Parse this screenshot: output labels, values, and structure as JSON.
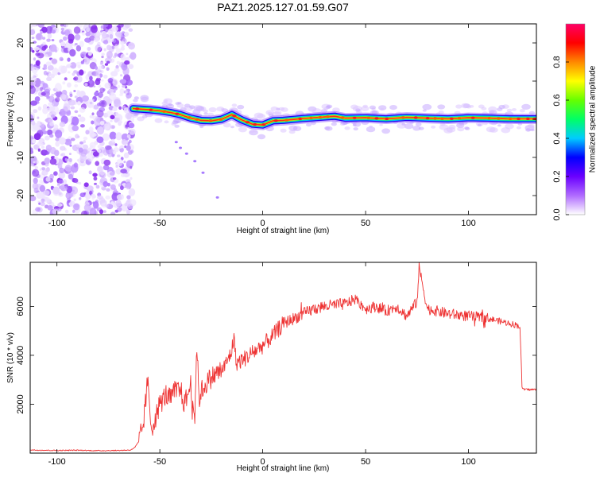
{
  "title": "PAZ1.2025.127.01.59.G07",
  "chart_data": [
    {
      "type": "heatmap",
      "xlabel": "Height of straight line (km)",
      "ylabel": "Frequency (Hz)",
      "xlim": [
        -113,
        133
      ],
      "ylim": [
        -25,
        25
      ],
      "xticks": [
        -100,
        -50,
        0,
        50,
        100
      ],
      "yticks": [
        -20,
        -10,
        0,
        10,
        20
      ],
      "colorbar": {
        "label": "Normalized spectral amplitude",
        "range": [
          0,
          1
        ],
        "ticks": [
          "0.0",
          "0.2",
          "0.4",
          "0.6",
          "0.8"
        ],
        "colormap": [
          "#ffffff",
          "#b06bff",
          "#6a00ff",
          "#0000ff",
          "#00ccff",
          "#00ff66",
          "#66ff00",
          "#ffff00",
          "#ff8800",
          "#ff0000",
          "#ff0066"
        ]
      },
      "noise_region_x": [
        -113,
        -63
      ],
      "ridge_x": [
        -63,
        -55,
        -50,
        -45,
        -40,
        -35,
        -30,
        -25,
        -20,
        -15,
        -10,
        -5,
        0,
        5,
        10,
        20,
        30,
        35,
        40,
        50,
        60,
        70,
        80,
        90,
        100,
        110,
        120,
        133
      ],
      "ridge_y": [
        2.8,
        2.5,
        2.2,
        1.8,
        1.2,
        0.3,
        -0.3,
        -0.4,
        0.0,
        1.2,
        -0.2,
        -1.3,
        -1.5,
        -0.4,
        -0.3,
        0.2,
        0.6,
        0.8,
        0.3,
        0.4,
        0.1,
        0.5,
        0.3,
        0.1,
        0.4,
        0.3,
        0.1,
        0.1
      ]
    },
    {
      "type": "line",
      "xlabel": "Height of straight line (km)",
      "ylabel": "SNR (10 * v/v)",
      "xlim": [
        -113,
        133
      ],
      "ylim": [
        0,
        7800
      ],
      "xticks": [
        -100,
        -50,
        0,
        50,
        100
      ],
      "yticks": [
        2000,
        4000,
        6000
      ],
      "color": "#ee3333",
      "series": [
        {
          "x": [
            -113,
            -100,
            -90,
            -80,
            -70,
            -64,
            -62,
            -60,
            -58,
            -57,
            -56,
            -55,
            -54,
            -52,
            -50,
            -47,
            -45,
            -43,
            -40,
            -38,
            -35,
            -33,
            -32,
            -31,
            -30,
            -28,
            -25,
            -20,
            -18,
            -15,
            -14,
            -13,
            -10,
            -5,
            0,
            5,
            10,
            15,
            20,
            25,
            30,
            40,
            45,
            50,
            55,
            60,
            65,
            70,
            75,
            76,
            80,
            90,
            100,
            110,
            115,
            120,
            125,
            126,
            127,
            133
          ],
          "y": [
            130,
            110,
            120,
            100,
            110,
            130,
            250,
            500,
            1200,
            2000,
            3000,
            1800,
            1000,
            1500,
            2000,
            2400,
            2200,
            2500,
            2600,
            2000,
            2800,
            1500,
            4500,
            2200,
            2500,
            2800,
            3100,
            3400,
            3600,
            4200,
            4800,
            3700,
            3800,
            4100,
            4400,
            4800,
            5300,
            5500,
            5700,
            5900,
            6000,
            6100,
            6300,
            5900,
            6000,
            5800,
            6000,
            5600,
            6200,
            7600,
            5900,
            5700,
            5600,
            5500,
            5400,
            5300,
            5200,
            2700,
            2600,
            2600
          ]
        }
      ]
    }
  ]
}
